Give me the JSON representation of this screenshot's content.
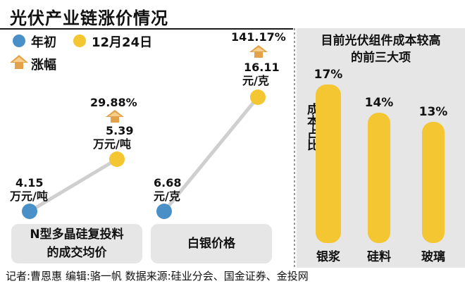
{
  "title": "光伏产业链涨价情况",
  "legend": {
    "start_label": "年初",
    "end_label": "12月24日",
    "rise_label": "涨幅",
    "start_color": "#4a90c8",
    "end_color": "#f3c632",
    "rise_color": "#e3a14a"
  },
  "chart_data": [
    {
      "type": "line",
      "title": "N型多晶硅复投料的成交均价",
      "series": [
        {
          "name": "年初",
          "value": 4.15,
          "label": "4.15",
          "unit": "万元/吨"
        },
        {
          "name": "12月24日",
          "value": 5.39,
          "label": "5.39",
          "unit": "万元/吨"
        }
      ],
      "change": "29.88%"
    },
    {
      "type": "line",
      "title": "白银价格",
      "series": [
        {
          "name": "年初",
          "value": 6.68,
          "label": "6.68",
          "unit": "元/克"
        },
        {
          "name": "12月24日",
          "value": 16.11,
          "label": "16.11",
          "unit": "元/克"
        }
      ],
      "change": "141.17%"
    },
    {
      "type": "bar",
      "title": "目前光伏组件成本较高的前三大项",
      "ylabel": "成本占比",
      "categories": [
        "银浆",
        "硅料",
        "玻璃"
      ],
      "values": [
        17,
        14,
        13
      ],
      "value_labels": [
        "17%",
        "14%",
        "13%"
      ]
    }
  ],
  "panels": {
    "poly_caption_line1": "N型多晶硅复投料",
    "poly_caption_line2": "的成交均价",
    "silver_caption": "白银价格",
    "right_title_line1": "目前光伏组件成本较高",
    "right_title_line2": "的前三大项"
  },
  "footer": "记者:曹恩惠   编辑:骆一帆   数据来源:硅业分会、国金证券、金投网"
}
